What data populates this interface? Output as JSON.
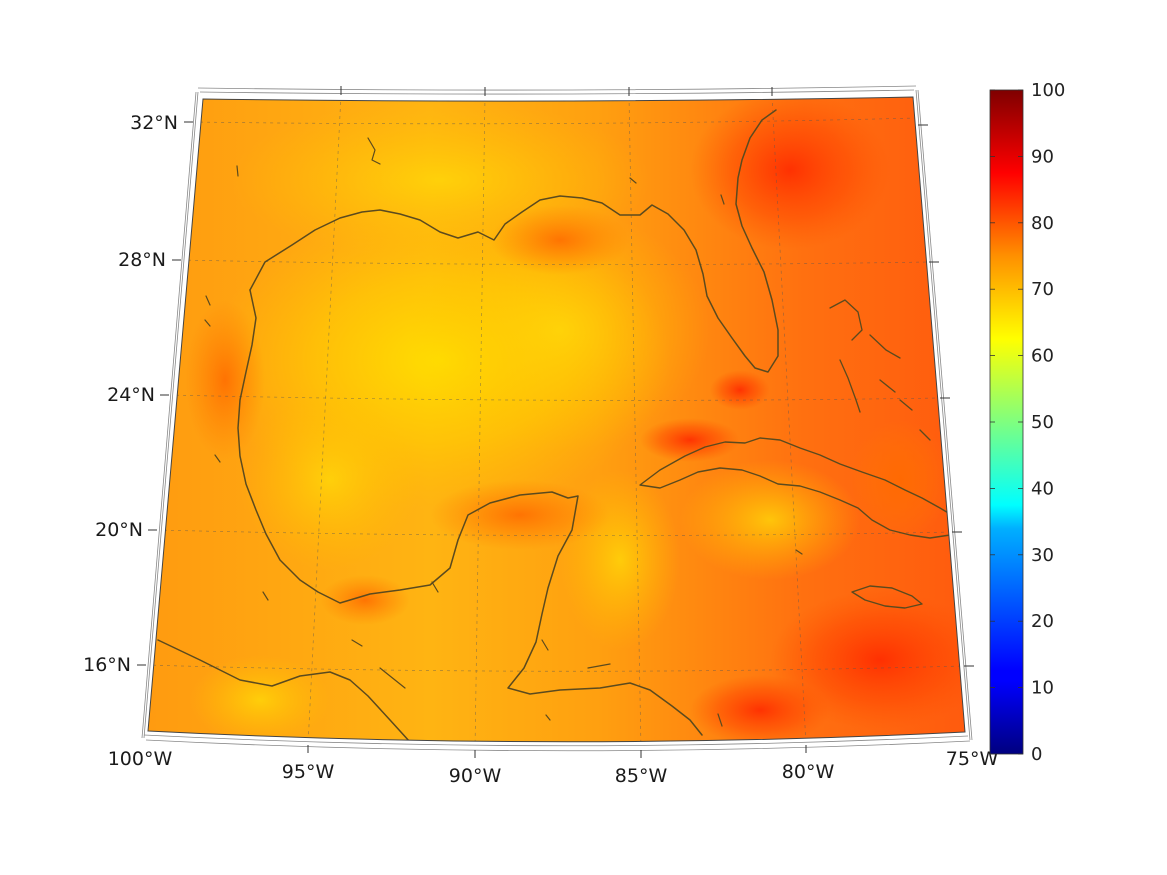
{
  "chart_data": {
    "type": "heatmap",
    "title": "",
    "xlabel": "",
    "ylabel": "",
    "projection": "conic",
    "grid": true,
    "longitude_ticks": [
      "100°W",
      "95°W",
      "90°W",
      "85°W",
      "80°W",
      "75°W"
    ],
    "latitude_ticks": [
      "32°N",
      "28°N",
      "24°N",
      "20°N",
      "16°N"
    ],
    "colorbar": {
      "colormap": "jet",
      "range": [
        0,
        100
      ],
      "ticks": [
        "100",
        "90",
        "80",
        "70",
        "60",
        "50",
        "40",
        "30",
        "20",
        "10",
        "0"
      ]
    },
    "field_range_shown": [
      62,
      88
    ],
    "land_outline_color": "#5b4a1e"
  }
}
